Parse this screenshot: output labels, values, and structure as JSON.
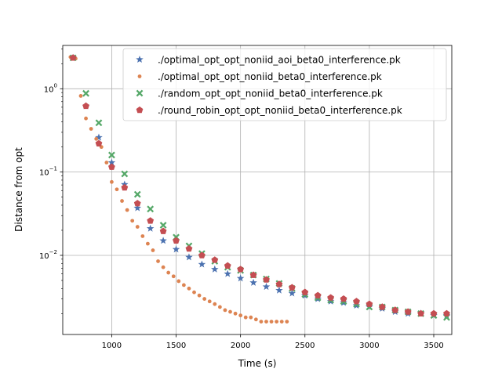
{
  "chart_data": {
    "type": "scatter",
    "title": "",
    "xlabel": "Time (s)",
    "ylabel": "Distance from opt",
    "xlim": [
      620,
      3640
    ],
    "ylim_log10": [
      -2.95,
      0.52
    ],
    "yscale": "log",
    "grid": true,
    "legend_position": "top-right",
    "x_ticks": [
      {
        "value": 1000,
        "label": "1000"
      },
      {
        "value": 1500,
        "label": "1500"
      },
      {
        "value": 2000,
        "label": "2000"
      },
      {
        "value": 2500,
        "label": "2500"
      },
      {
        "value": 3000,
        "label": "3000"
      },
      {
        "value": 3500,
        "label": "3500"
      }
    ],
    "y_ticks": [
      {
        "value": 1,
        "base": "10",
        "exp": "0"
      },
      {
        "value": 0.1,
        "base": "10",
        "exp": "−1"
      },
      {
        "value": 0.01,
        "base": "10",
        "exp": "−2"
      }
    ],
    "series": [
      {
        "name": "./optimal_opt_opt_noniid_aoi_beta0_interference.pk",
        "marker": "star",
        "color": "#4c72b0",
        "x": [
          700,
          800,
          900,
          1000,
          1100,
          1200,
          1300,
          1400,
          1500,
          1600,
          1700,
          1800,
          1900,
          2000,
          2100,
          2200,
          2300,
          2400,
          2500,
          2600,
          2700,
          2800,
          2900,
          3000,
          3100,
          3200,
          3300,
          3400,
          3500,
          3600
        ],
        "y": [
          2.35,
          0.62,
          0.26,
          0.13,
          0.071,
          0.037,
          0.021,
          0.015,
          0.0118,
          0.0095,
          0.0078,
          0.0068,
          0.006,
          0.0053,
          0.0047,
          0.0042,
          0.0038,
          0.0035,
          0.0033,
          0.003,
          0.0028,
          0.0027,
          0.0025,
          0.0024,
          0.0023,
          0.0021,
          0.002,
          0.002,
          0.0019,
          0.0019
        ]
      },
      {
        "name": "./optimal_opt_opt_noniid_beta0_interference.pk",
        "marker": "dot",
        "color": "#dd8452",
        "x": [
          680,
          720,
          760,
          800,
          840,
          880,
          920,
          960,
          1000,
          1040,
          1080,
          1120,
          1160,
          1200,
          1240,
          1280,
          1320,
          1360,
          1400,
          1440,
          1480,
          1520,
          1560,
          1600,
          1640,
          1680,
          1720,
          1760,
          1800,
          1840,
          1880,
          1920,
          1960,
          2000,
          2040,
          2080,
          2120,
          2160,
          2200,
          2240,
          2280,
          2320,
          2360
        ],
        "y": [
          2.4,
          2.3,
          0.82,
          0.44,
          0.33,
          0.25,
          0.2,
          0.13,
          0.076,
          0.062,
          0.045,
          0.035,
          0.026,
          0.022,
          0.017,
          0.0138,
          0.0115,
          0.0085,
          0.0072,
          0.0062,
          0.0056,
          0.0049,
          0.0044,
          0.004,
          0.0036,
          0.0033,
          0.003,
          0.0028,
          0.0026,
          0.0024,
          0.0022,
          0.0021,
          0.002,
          0.0019,
          0.0018,
          0.0018,
          0.0017,
          0.0016,
          0.0016,
          0.0016,
          0.0016,
          0.0016,
          0.0016
        ]
      },
      {
        "name": "./random_opt_opt_noniid_beta0_interference.pk",
        "marker": "x",
        "color": "#55a868",
        "x": [
          700,
          800,
          900,
          1000,
          1100,
          1200,
          1300,
          1400,
          1500,
          1600,
          1700,
          1800,
          1900,
          2000,
          2100,
          2200,
          2300,
          2400,
          2500,
          2600,
          2700,
          2800,
          2900,
          3000,
          3100,
          3200,
          3300,
          3400,
          3500,
          3600
        ],
        "y": [
          2.35,
          0.88,
          0.39,
          0.16,
          0.095,
          0.054,
          0.036,
          0.023,
          0.0165,
          0.013,
          0.0105,
          0.0085,
          0.0072,
          0.0066,
          0.0058,
          0.0052,
          0.0046,
          0.004,
          0.0034,
          0.0031,
          0.0029,
          0.0028,
          0.0026,
          0.0024,
          0.0024,
          0.0022,
          0.0021,
          0.002,
          0.0019,
          0.0018
        ]
      },
      {
        "name": "./round_robin_opt_opt_noniid_beta0_interference.pk",
        "marker": "pentagon",
        "color": "#c44e52",
        "x": [
          700,
          800,
          900,
          1000,
          1100,
          1200,
          1300,
          1400,
          1500,
          1600,
          1700,
          1800,
          1900,
          2000,
          2100,
          2200,
          2300,
          2400,
          2500,
          2600,
          2700,
          2800,
          2900,
          3000,
          3100,
          3200,
          3300,
          3400,
          3500,
          3600
        ],
        "y": [
          2.35,
          0.62,
          0.22,
          0.115,
          0.065,
          0.042,
          0.026,
          0.0195,
          0.015,
          0.012,
          0.01,
          0.0088,
          0.0075,
          0.0068,
          0.0058,
          0.0051,
          0.0045,
          0.0041,
          0.0036,
          0.0033,
          0.0031,
          0.003,
          0.0028,
          0.0026,
          0.0024,
          0.0022,
          0.0021,
          0.002,
          0.002,
          0.002
        ]
      }
    ]
  }
}
